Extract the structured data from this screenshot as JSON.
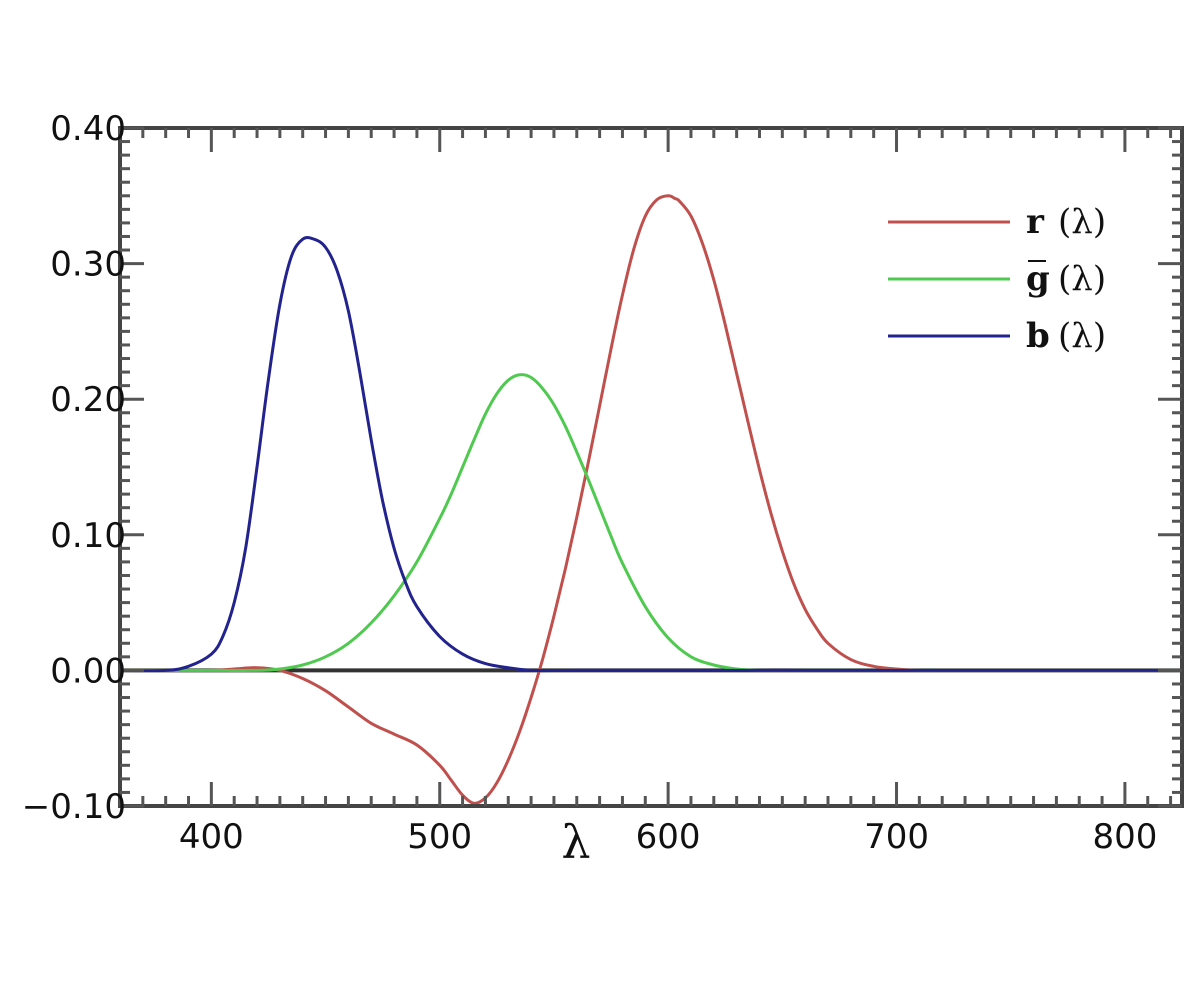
{
  "chart_data": {
    "type": "line",
    "xlabel": "λ",
    "ylabel": "",
    "xlim": [
      360,
      825
    ],
    "ylim": [
      -0.1,
      0.4
    ],
    "xticks": [
      400,
      500,
      600,
      700,
      800
    ],
    "xtick_labels": [
      "400",
      "500",
      "600",
      "700",
      "800"
    ],
    "yticks": [
      -0.1,
      0.0,
      0.1,
      0.2,
      0.3,
      0.4
    ],
    "ytick_labels": [
      "−0.10",
      "0.00",
      "0.10",
      "0.20",
      "0.30",
      "0.40"
    ],
    "legend_position": "top-right",
    "grid": false,
    "series": [
      {
        "name": "r (λ)",
        "legend_symbol": "r",
        "legend_arg": "(λ)",
        "color": "#c0504d",
        "x": [
          360,
          380,
          400,
          410,
          420,
          430,
          440,
          450,
          460,
          470,
          480,
          490,
          500,
          505,
          510,
          515,
          520,
          525,
          530,
          535,
          540,
          545,
          550,
          555,
          560,
          565,
          570,
          575,
          580,
          585,
          590,
          595,
          600,
          603,
          605,
          610,
          615,
          620,
          625,
          630,
          635,
          640,
          645,
          650,
          655,
          660,
          665,
          670,
          680,
          690,
          700,
          710,
          720,
          740,
          760,
          780,
          800,
          825
        ],
        "values": [
          0.0,
          0.0,
          0.0,
          0.001,
          0.002,
          0.0,
          -0.006,
          -0.015,
          -0.027,
          -0.039,
          -0.047,
          -0.055,
          -0.07,
          -0.081,
          -0.092,
          -0.098,
          -0.094,
          -0.083,
          -0.066,
          -0.045,
          -0.02,
          0.008,
          0.04,
          0.075,
          0.113,
          0.153,
          0.195,
          0.237,
          0.277,
          0.311,
          0.335,
          0.347,
          0.35,
          0.348,
          0.346,
          0.335,
          0.315,
          0.288,
          0.255,
          0.219,
          0.183,
          0.148,
          0.116,
          0.088,
          0.064,
          0.045,
          0.031,
          0.02,
          0.008,
          0.003,
          0.001,
          0.0,
          0.0,
          0.0,
          0.0,
          0.0,
          0.0,
          0.0
        ]
      },
      {
        "name": "g (λ)",
        "legend_symbol": "g",
        "legend_arg": "(λ)",
        "color": "#4fc94f",
        "x": [
          360,
          400,
          420,
          430,
          440,
          450,
          460,
          470,
          480,
          490,
          500,
          505,
          510,
          515,
          520,
          525,
          530,
          535,
          540,
          545,
          550,
          555,
          560,
          565,
          570,
          575,
          580,
          590,
          600,
          610,
          620,
          630,
          640,
          660,
          700,
          825
        ],
        "values": [
          0.0,
          0.0,
          0.0,
          0.001,
          0.004,
          0.01,
          0.02,
          0.035,
          0.055,
          0.08,
          0.112,
          0.13,
          0.15,
          0.17,
          0.189,
          0.204,
          0.214,
          0.218,
          0.216,
          0.208,
          0.196,
          0.18,
          0.161,
          0.141,
          0.12,
          0.099,
          0.079,
          0.047,
          0.024,
          0.01,
          0.004,
          0.001,
          0.0,
          0.0,
          0.0,
          0.0
        ]
      },
      {
        "name": "b (λ)",
        "legend_symbol": "b",
        "legend_arg": "(λ)",
        "color": "#23238e",
        "x": [
          360,
          380,
          390,
          400,
          405,
          410,
          415,
          420,
          425,
          430,
          435,
          440,
          445,
          450,
          455,
          460,
          465,
          470,
          475,
          480,
          485,
          490,
          500,
          510,
          520,
          530,
          540,
          560,
          600,
          700,
          825
        ],
        "values": [
          0.0,
          0.0,
          0.003,
          0.012,
          0.025,
          0.05,
          0.09,
          0.15,
          0.215,
          0.27,
          0.305,
          0.318,
          0.318,
          0.312,
          0.295,
          0.265,
          0.22,
          0.17,
          0.125,
          0.09,
          0.065,
          0.047,
          0.025,
          0.012,
          0.005,
          0.002,
          0.0,
          0.0,
          0.0,
          0.0,
          0.0
        ]
      }
    ]
  }
}
